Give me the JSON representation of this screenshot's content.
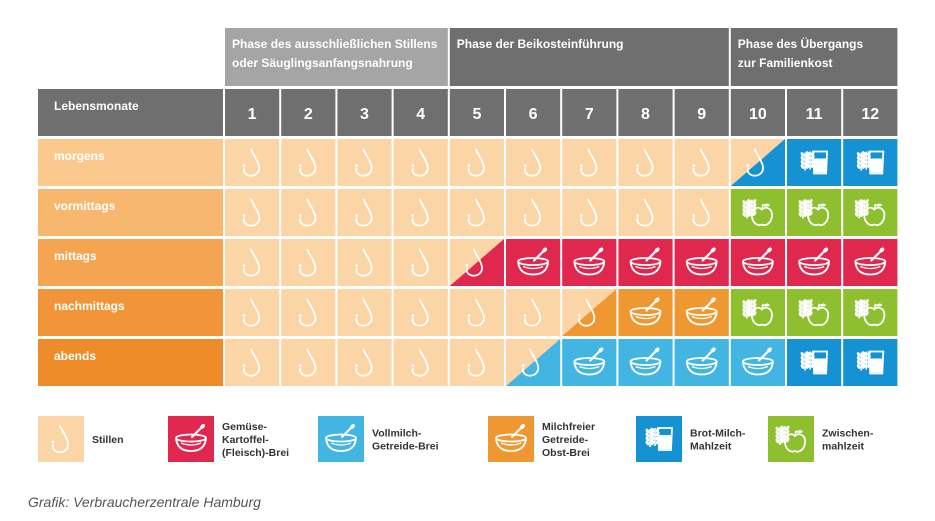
{
  "phases": [
    {
      "lines": [
        "Phase des ausschließlichen Stillens",
        "oder Säuglingsanfangsnahrung"
      ],
      "from": 1,
      "to": 4
    },
    {
      "lines": [
        "Phase der Beikosteinführung"
      ],
      "from": 5,
      "to": 9
    },
    {
      "lines": [
        "Phase des Übergangs",
        "zur Familienkost"
      ],
      "from": 10,
      "to": 12
    }
  ],
  "header_label": "Lebensmonate",
  "months": [
    "1",
    "2",
    "3",
    "4",
    "5",
    "6",
    "7",
    "8",
    "9",
    "10",
    "11",
    "12"
  ],
  "rows": [
    "morgens",
    "vormittags",
    "mittags",
    "nachmittags",
    "abends"
  ],
  "cells": [
    [
      "stillen",
      "stillen",
      "stillen",
      "stillen",
      "stillen",
      "stillen",
      "stillen",
      "stillen",
      "stillen",
      "stillen>brot",
      "brot",
      "brot"
    ],
    [
      "stillen",
      "stillen",
      "stillen",
      "stillen",
      "stillen",
      "stillen",
      "stillen",
      "stillen",
      "stillen",
      "zwischen",
      "zwischen",
      "zwischen"
    ],
    [
      "stillen",
      "stillen",
      "stillen",
      "stillen",
      "stillen>gemuese",
      "gemuese",
      "gemuese",
      "gemuese",
      "gemuese",
      "gemuese",
      "gemuese",
      "gemuese"
    ],
    [
      "stillen",
      "stillen",
      "stillen",
      "stillen",
      "stillen",
      "stillen",
      "stillen>getreide_obst",
      "getreide_obst",
      "getreide_obst",
      "zwischen",
      "zwischen",
      "zwischen"
    ],
    [
      "stillen",
      "stillen",
      "stillen",
      "stillen",
      "stillen",
      "stillen>vollmilch",
      "vollmilch",
      "vollmilch",
      "vollmilch",
      "vollmilch",
      "brot",
      "brot"
    ]
  ],
  "legend": [
    {
      "key": "stillen",
      "icon": "breast-icon",
      "lines": [
        "Stillen"
      ]
    },
    {
      "key": "gemuese",
      "icon": "bowl-spoon-icon",
      "lines": [
        "Gemüse-",
        "Kartoffel-",
        "(Fleisch)-Brei"
      ]
    },
    {
      "key": "vollmilch",
      "icon": "bowl-spoon-icon",
      "lines": [
        "Vollmilch-",
        "Getreide-Brei"
      ]
    },
    {
      "key": "getreide_obst",
      "icon": "bowl-spoon-icon",
      "lines": [
        "Milchfreier",
        "Getreide-",
        "Obst-Brei"
      ]
    },
    {
      "key": "brot",
      "icon": "grain-glass-icon",
      "lines": [
        "Brot-Milch-",
        "Mahlzeit"
      ]
    },
    {
      "key": "zwischen",
      "icon": "grain-apple-icon",
      "lines": [
        "Zwischen-",
        "mahlzeit"
      ]
    }
  ],
  "colors": {
    "stillen": "#fcd5a7",
    "gemuese": "#e0284f",
    "vollmilch": "#42b5e3",
    "getreide_obst": "#ef9832",
    "brot": "#1492d3",
    "zwischen": "#8ebf2f",
    "header_dark": "#6f6f6f",
    "header_light": "#a5a5a5",
    "row_labels": [
      "#fbc98e",
      "#f8b76e",
      "#f5a452",
      "#f29538",
      "#ee8c2a"
    ]
  },
  "credit": "Grafik: Verbraucherzentrale Hamburg"
}
